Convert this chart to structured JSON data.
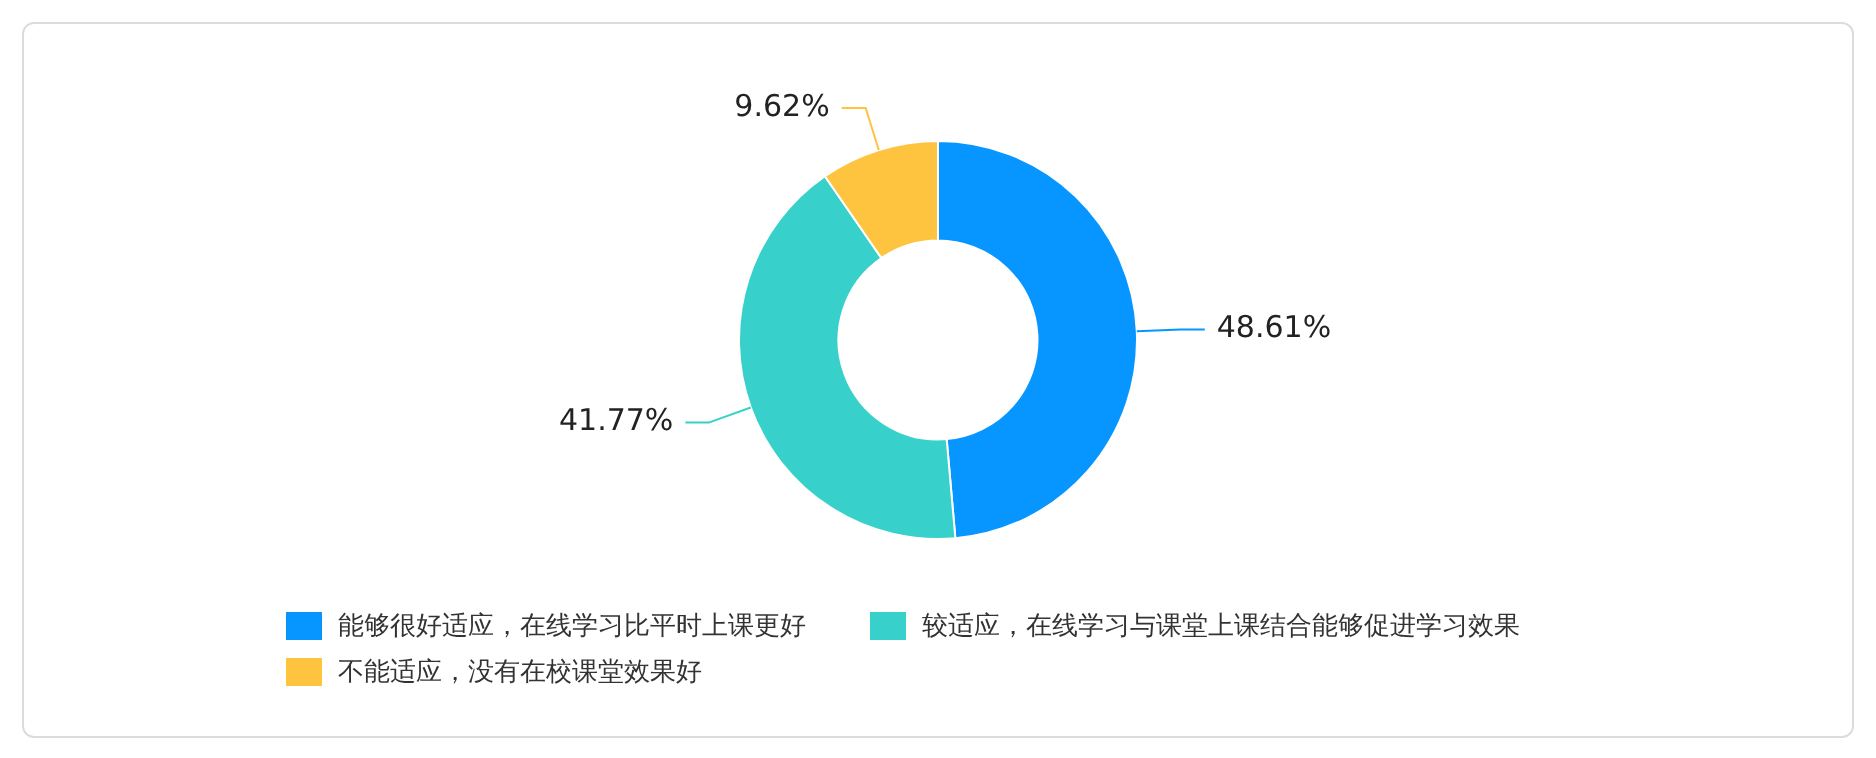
{
  "chart_data": {
    "type": "donut",
    "categories": [
      "能够很好适应，在线学习比平时上课更好",
      "较适应，在线学习与课堂上课结合能够促进学习效果",
      "不能适应，没有在校课堂效果好"
    ],
    "values": [
      48.61,
      41.77,
      9.62
    ],
    "colors": [
      "#0796ff",
      "#38d0ca",
      "#ffc43f"
    ],
    "value_labels": [
      "48.61%",
      "41.77%",
      "9.62%"
    ],
    "legend": "bottom"
  }
}
